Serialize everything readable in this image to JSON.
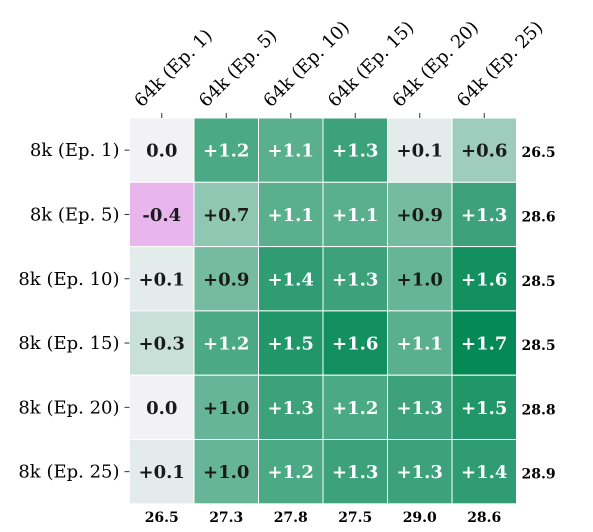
{
  "chart_data": {
    "type": "heatmap",
    "title": "",
    "xlabel": "",
    "ylabel": "",
    "x_categories": [
      "64k (Ep. 1)",
      "64k (Ep. 5)",
      "64k (Ep. 10)",
      "64k (Ep. 15)",
      "64k (Ep. 20)",
      "64k (Ep. 25)"
    ],
    "y_categories": [
      "8k (Ep. 1)",
      "8k (Ep. 5)",
      "8k (Ep. 10)",
      "8k (Ep. 15)",
      "8k (Ep. 20)",
      "8k (Ep. 25)"
    ],
    "values": [
      [
        0.0,
        1.2,
        1.1,
        1.3,
        0.1,
        0.6
      ],
      [
        -0.4,
        0.7,
        1.1,
        1.1,
        0.9,
        1.3
      ],
      [
        0.1,
        0.9,
        1.4,
        1.3,
        1.0,
        1.6
      ],
      [
        0.3,
        1.2,
        1.5,
        1.6,
        1.1,
        1.7
      ],
      [
        0.0,
        1.0,
        1.3,
        1.2,
        1.3,
        1.5
      ],
      [
        0.1,
        1.0,
        1.2,
        1.3,
        1.3,
        1.4
      ]
    ],
    "cell_labels": [
      [
        "0.0",
        "+1.2",
        "+1.1",
        "+1.3",
        "+0.1",
        "+0.6"
      ],
      [
        "-0.4",
        "+0.7",
        "+1.1",
        "+1.1",
        "+0.9",
        "+1.3"
      ],
      [
        "+0.1",
        "+0.9",
        "+1.4",
        "+1.3",
        "+1.0",
        "+1.6"
      ],
      [
        "+0.3",
        "+1.2",
        "+1.5",
        "+1.6",
        "+1.1",
        "+1.7"
      ],
      [
        "0.0",
        "+1.0",
        "+1.3",
        "+1.2",
        "+1.3",
        "+1.5"
      ],
      [
        "+0.1",
        "+1.0",
        "+1.2",
        "+1.3",
        "+1.3",
        "+1.4"
      ]
    ],
    "row_totals": [
      "26.5",
      "28.6",
      "28.5",
      "28.5",
      "28.8",
      "28.9"
    ],
    "col_totals": [
      "26.5",
      "27.3",
      "27.8",
      "27.5",
      "29.0",
      "28.6"
    ],
    "colors": {
      "neutral": "#f2f2f4",
      "negative": "#e8b5ec",
      "positive_max": "#058a57",
      "grid_line": "#ffffff",
      "dark_text": "#1a1a1a",
      "light_text": "#ffffff"
    },
    "color_scale_max": 1.7
  }
}
